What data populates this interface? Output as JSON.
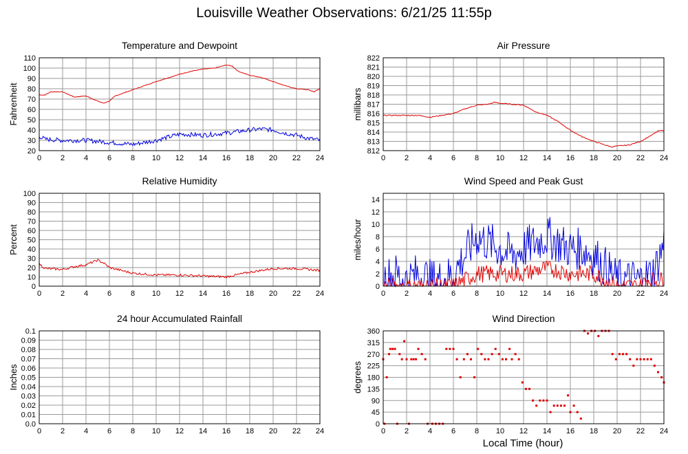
{
  "title": "Louisville Weather Observations: 6/21/25 11:55p",
  "x_axis_label": "Local Time (hour)",
  "colors": {
    "red": "#e00000",
    "blue": "#0000dd",
    "grid": "#999999",
    "frame": "#000000"
  },
  "chart_data": [
    {
      "type": "line",
      "title": "Temperature and Dewpoint",
      "ylabel": "Fahrenheit",
      "xlabel": "",
      "xlim": [
        0,
        24
      ],
      "ylim": [
        20,
        110
      ],
      "x_ticks": [
        0,
        2,
        4,
        6,
        8,
        10,
        12,
        14,
        16,
        18,
        20,
        22,
        24
      ],
      "y_ticks": [
        "20",
        "30",
        "40",
        "50",
        "60",
        "70",
        "80",
        "90",
        "100",
        "110"
      ],
      "grid": true,
      "series": [
        {
          "color": "red",
          "noise": 0.3,
          "x": [
            0,
            0.5,
            1,
            2,
            3,
            4,
            5,
            5.5,
            6,
            6.5,
            8,
            10,
            12,
            13,
            14,
            15,
            16,
            16.5,
            17,
            18,
            19,
            20,
            21,
            22,
            23,
            23.5,
            24
          ],
          "y": [
            74,
            74,
            77,
            77,
            72,
            73,
            68,
            66,
            68,
            73,
            79,
            87,
            94,
            97,
            99,
            100,
            103,
            102,
            97,
            93,
            91,
            87,
            83,
            80,
            79,
            77,
            80
          ]
        },
        {
          "color": "blue",
          "noise": 2.2,
          "x": [
            0,
            0.5,
            2,
            4,
            6,
            8,
            10,
            11,
            12,
            14,
            16,
            18,
            19,
            20,
            21,
            22,
            23,
            24
          ],
          "y": [
            34,
            31,
            30,
            30,
            28,
            26,
            30,
            33,
            36,
            35,
            37,
            40,
            41,
            40,
            37,
            35,
            32,
            30
          ]
        }
      ]
    },
    {
      "type": "line",
      "title": "Air Pressure",
      "ylabel": "millibars",
      "xlabel": "",
      "xlim": [
        0,
        24
      ],
      "ylim": [
        812,
        822
      ],
      "x_ticks": [
        0,
        2,
        4,
        6,
        8,
        10,
        12,
        14,
        16,
        18,
        20,
        22,
        24
      ],
      "y_ticks": [
        "812",
        "813",
        "814",
        "815",
        "816",
        "817",
        "818",
        "819",
        "820",
        "821",
        "822"
      ],
      "grid": true,
      "series": [
        {
          "color": "red",
          "noise": 0.05,
          "x": [
            0,
            2,
            3,
            4,
            5,
            6,
            7,
            8,
            9,
            9.5,
            10,
            11,
            12,
            13,
            14,
            15,
            16,
            17,
            18,
            19,
            19.5,
            20,
            21,
            22,
            23,
            23.5,
            24
          ],
          "y": [
            815.8,
            815.8,
            815.8,
            815.6,
            815.8,
            816.0,
            816.5,
            816.9,
            817.0,
            817.2,
            817.1,
            817.0,
            816.9,
            816.2,
            815.8,
            815.1,
            814.2,
            813.5,
            813.0,
            812.6,
            812.4,
            812.5,
            812.6,
            813.0,
            813.7,
            814.1,
            814.2
          ]
        }
      ]
    },
    {
      "type": "line",
      "title": "Relative Humidity",
      "ylabel": "Percent",
      "xlabel": "",
      "xlim": [
        0,
        24
      ],
      "ylim": [
        0,
        100
      ],
      "x_ticks": [
        0,
        2,
        4,
        6,
        8,
        10,
        12,
        14,
        16,
        18,
        20,
        22,
        24
      ],
      "y_ticks": [
        "0",
        "10",
        "20",
        "30",
        "40",
        "50",
        "60",
        "70",
        "80",
        "90",
        "100"
      ],
      "grid": true,
      "series": [
        {
          "color": "red",
          "noise": 1.2,
          "x": [
            0,
            0.5,
            2,
            3,
            4,
            5,
            5.5,
            6,
            8,
            10,
            12,
            14,
            16,
            18,
            20,
            22,
            24
          ],
          "y": [
            24,
            19,
            18,
            21,
            23,
            28,
            25,
            20,
            14,
            12,
            12,
            11,
            10,
            15,
            19,
            19,
            17
          ]
        }
      ]
    },
    {
      "type": "line",
      "title": "Wind Speed and Peak Gust",
      "ylabel": "miles/hour",
      "xlabel": "",
      "xlim": [
        0,
        24
      ],
      "ylim": [
        0,
        15
      ],
      "x_ticks": [
        0,
        2,
        4,
        6,
        8,
        10,
        12,
        14,
        16,
        18,
        20,
        22,
        24
      ],
      "y_ticks": [
        "0",
        "2",
        "4",
        "6",
        "8",
        "10",
        "12",
        "14"
      ],
      "grid": true,
      "series": [
        {
          "color": "blue",
          "noise": 3.5,
          "x": [
            0,
            1,
            2,
            3,
            4,
            5,
            6,
            7,
            8,
            9,
            10,
            11,
            12,
            13,
            14,
            15,
            16,
            17,
            18,
            19,
            20,
            21,
            22,
            23,
            23.5,
            24
          ],
          "y": [
            1,
            2,
            1,
            2,
            1,
            1,
            2,
            5,
            8,
            7,
            6,
            5,
            6,
            7,
            8,
            7,
            6,
            6,
            5,
            3,
            1,
            1,
            1,
            2,
            4,
            7
          ],
          "clip": [
            0,
            15
          ]
        },
        {
          "color": "red",
          "noise": 1.4,
          "x": [
            0,
            3,
            4,
            6,
            7,
            8,
            10,
            12,
            14,
            16,
            18,
            19,
            20,
            22,
            22.5,
            24
          ],
          "y": [
            0,
            0,
            0,
            0,
            1,
            2,
            2,
            2,
            3,
            2,
            2,
            1,
            0,
            0,
            1,
            1
          ],
          "clip": [
            0,
            4
          ]
        }
      ]
    },
    {
      "type": "line",
      "title": "24 hour Accumulated Rainfall",
      "ylabel": "Inches",
      "xlabel": "",
      "xlim": [
        0,
        24
      ],
      "ylim": [
        0,
        0.1
      ],
      "x_ticks": [
        0,
        2,
        4,
        6,
        8,
        10,
        12,
        14,
        16,
        18,
        20,
        22,
        24
      ],
      "y_ticks": [
        "0.0",
        "0.01",
        "0.02",
        "0.03",
        "0.04",
        "0.05",
        "0.06",
        "0.07",
        "0.08",
        "0.09",
        "0.1"
      ],
      "grid": true,
      "series": [
        {
          "color": "red",
          "noise": 0,
          "x": [
            0,
            24
          ],
          "y": [
            0,
            0
          ]
        }
      ]
    },
    {
      "type": "scatter",
      "title": "Wind Direction",
      "ylabel": "degrees",
      "xlabel": "Local Time (hour)",
      "xlim": [
        0,
        24
      ],
      "ylim": [
        0,
        360
      ],
      "x_ticks": [
        0,
        2,
        4,
        6,
        8,
        10,
        12,
        14,
        16,
        18,
        20,
        22,
        24
      ],
      "y_ticks": [
        "0",
        "45",
        "90",
        "135",
        "180",
        "225",
        "270",
        "315",
        "360"
      ],
      "grid": true,
      "series": [
        {
          "color": "red",
          "x": [
            0.0,
            0.1,
            0.3,
            0.5,
            0.6,
            0.8,
            1.0,
            1.2,
            1.4,
            1.6,
            1.8,
            2.0,
            2.2,
            2.4,
            2.6,
            2.8,
            3.0,
            3.3,
            3.6,
            3.8,
            4.2,
            4.5,
            4.8,
            5.1,
            5.4,
            5.7,
            6.0,
            6.3,
            6.6,
            6.9,
            7.2,
            7.5,
            7.8,
            8.1,
            8.4,
            8.7,
            9.0,
            9.3,
            9.6,
            9.9,
            10.2,
            10.5,
            10.8,
            11.0,
            11.3,
            11.6,
            11.9,
            12.2,
            12.5,
            12.8,
            13.1,
            13.4,
            13.7,
            14.0,
            14.3,
            14.6,
            14.9,
            15.2,
            15.5,
            15.8,
            16.0,
            16.3,
            16.6,
            16.9,
            17.2,
            17.5,
            17.8,
            18.1,
            18.4,
            18.7,
            19.0,
            19.3,
            19.6,
            19.9,
            20.2,
            20.5,
            20.8,
            21.1,
            21.4,
            21.7,
            22.0,
            22.3,
            22.6,
            22.9,
            23.2,
            23.5,
            23.8,
            24.0
          ],
          "y": [
            250,
            0,
            180,
            270,
            290,
            290,
            290,
            0,
            270,
            250,
            320,
            250,
            0,
            250,
            250,
            250,
            290,
            270,
            250,
            0,
            0,
            0,
            0,
            0,
            290,
            290,
            290,
            250,
            180,
            250,
            270,
            250,
            180,
            290,
            270,
            250,
            250,
            270,
            290,
            270,
            250,
            250,
            290,
            250,
            270,
            250,
            160,
            135,
            135,
            90,
            70,
            90,
            90,
            90,
            45,
            70,
            70,
            70,
            70,
            110,
            45,
            70,
            45,
            20,
            360,
            350,
            360,
            360,
            340,
            360,
            360,
            360,
            270,
            250,
            270,
            270,
            270,
            250,
            225,
            250,
            250,
            250,
            250,
            250,
            225,
            200,
            180,
            160
          ]
        }
      ]
    }
  ]
}
